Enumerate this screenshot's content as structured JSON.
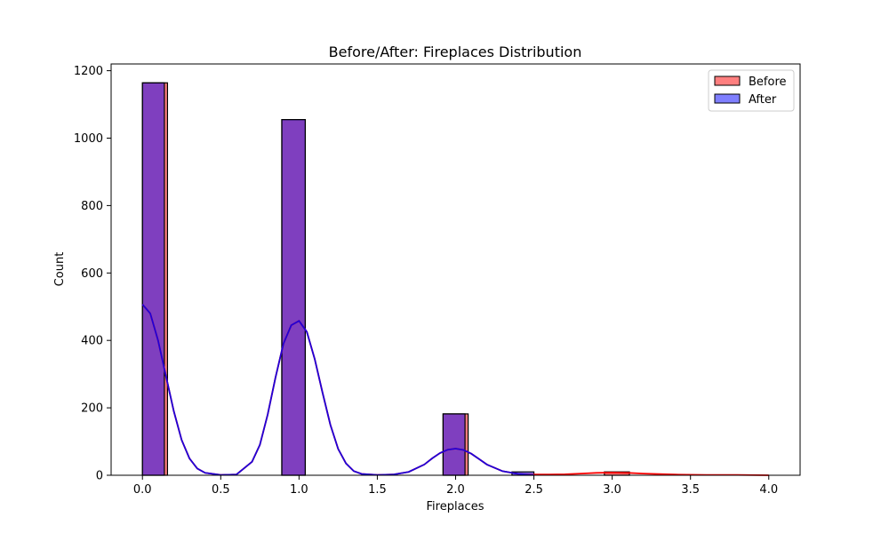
{
  "chart_data": {
    "type": "bar",
    "title": "Before/After: Fireplaces Distribution",
    "xlabel": "Fireplaces",
    "ylabel": "Count",
    "xlim": [
      -0.2,
      4.2
    ],
    "ylim": [
      0,
      1220
    ],
    "xticks": [
      0.0,
      0.5,
      1.0,
      1.5,
      2.0,
      2.5,
      3.0,
      3.5,
      4.0
    ],
    "xtick_labels": [
      "0.0",
      "0.5",
      "1.0",
      "1.5",
      "2.0",
      "2.5",
      "3.0",
      "3.5",
      "4.0"
    ],
    "yticks": [
      0,
      200,
      400,
      600,
      800,
      1000,
      1200
    ],
    "ytick_labels": [
      "0",
      "200",
      "400",
      "600",
      "800",
      "1000",
      "1200"
    ],
    "grid": false,
    "legend_position": "top-right",
    "series": [
      {
        "name": "Before",
        "color": "#ff0000",
        "bars": [
          {
            "x0": 0.0,
            "x1": 0.16,
            "count": 1164
          },
          {
            "x0": 0.89,
            "x1": 1.04,
            "count": 1055
          },
          {
            "x0": 1.92,
            "x1": 2.08,
            "count": 182
          },
          {
            "x0": 2.95,
            "x1": 3.11,
            "count": 10
          }
        ],
        "kde": [
          [
            0.0,
            507
          ],
          [
            0.05,
            480
          ],
          [
            0.1,
            400
          ],
          [
            0.15,
            295
          ],
          [
            0.2,
            190
          ],
          [
            0.25,
            105
          ],
          [
            0.3,
            50
          ],
          [
            0.35,
            20
          ],
          [
            0.4,
            7
          ],
          [
            0.5,
            1
          ],
          [
            0.6,
            2
          ],
          [
            0.7,
            40
          ],
          [
            0.75,
            90
          ],
          [
            0.8,
            180
          ],
          [
            0.85,
            290
          ],
          [
            0.9,
            390
          ],
          [
            0.95,
            445
          ],
          [
            1.0,
            458
          ],
          [
            1.05,
            425
          ],
          [
            1.1,
            345
          ],
          [
            1.15,
            245
          ],
          [
            1.2,
            150
          ],
          [
            1.25,
            78
          ],
          [
            1.3,
            35
          ],
          [
            1.35,
            12
          ],
          [
            1.4,
            4
          ],
          [
            1.5,
            1
          ],
          [
            1.6,
            2
          ],
          [
            1.7,
            10
          ],
          [
            1.8,
            32
          ],
          [
            1.85,
            50
          ],
          [
            1.9,
            66
          ],
          [
            1.95,
            76
          ],
          [
            2.0,
            79
          ],
          [
            2.05,
            75
          ],
          [
            2.1,
            64
          ],
          [
            2.15,
            48
          ],
          [
            2.2,
            32
          ],
          [
            2.3,
            12
          ],
          [
            2.4,
            4
          ],
          [
            2.5,
            2
          ],
          [
            2.6,
            2
          ],
          [
            2.7,
            3
          ],
          [
            2.8,
            5
          ],
          [
            2.9,
            7
          ],
          [
            3.0,
            8
          ],
          [
            3.1,
            7
          ],
          [
            3.2,
            5
          ],
          [
            3.4,
            2
          ],
          [
            3.6,
            1
          ],
          [
            3.8,
            1
          ],
          [
            4.0,
            0
          ]
        ]
      },
      {
        "name": "After",
        "color": "#0000ff",
        "bars": [
          {
            "x0": 0.0,
            "x1": 0.14,
            "count": 1164
          },
          {
            "x0": 0.89,
            "x1": 1.04,
            "count": 1055
          },
          {
            "x0": 1.92,
            "x1": 2.06,
            "count": 182
          },
          {
            "x0": 2.36,
            "x1": 2.5,
            "count": 10
          }
        ],
        "kde": [
          [
            0.0,
            507
          ],
          [
            0.05,
            480
          ],
          [
            0.1,
            400
          ],
          [
            0.15,
            295
          ],
          [
            0.2,
            190
          ],
          [
            0.25,
            105
          ],
          [
            0.3,
            50
          ],
          [
            0.35,
            20
          ],
          [
            0.4,
            7
          ],
          [
            0.5,
            1
          ],
          [
            0.6,
            2
          ],
          [
            0.7,
            40
          ],
          [
            0.75,
            90
          ],
          [
            0.8,
            180
          ],
          [
            0.85,
            290
          ],
          [
            0.9,
            390
          ],
          [
            0.95,
            445
          ],
          [
            1.0,
            458
          ],
          [
            1.05,
            425
          ],
          [
            1.1,
            345
          ],
          [
            1.15,
            245
          ],
          [
            1.2,
            150
          ],
          [
            1.25,
            78
          ],
          [
            1.3,
            35
          ],
          [
            1.35,
            12
          ],
          [
            1.4,
            4
          ],
          [
            1.5,
            1
          ],
          [
            1.6,
            2
          ],
          [
            1.7,
            10
          ],
          [
            1.8,
            32
          ],
          [
            1.85,
            50
          ],
          [
            1.9,
            66
          ],
          [
            1.95,
            76
          ],
          [
            2.0,
            79
          ],
          [
            2.05,
            75
          ],
          [
            2.1,
            64
          ],
          [
            2.15,
            48
          ],
          [
            2.2,
            32
          ],
          [
            2.3,
            12
          ],
          [
            2.4,
            4
          ],
          [
            2.5,
            1
          ]
        ]
      }
    ],
    "overlap_color": "#7f3fbf"
  }
}
